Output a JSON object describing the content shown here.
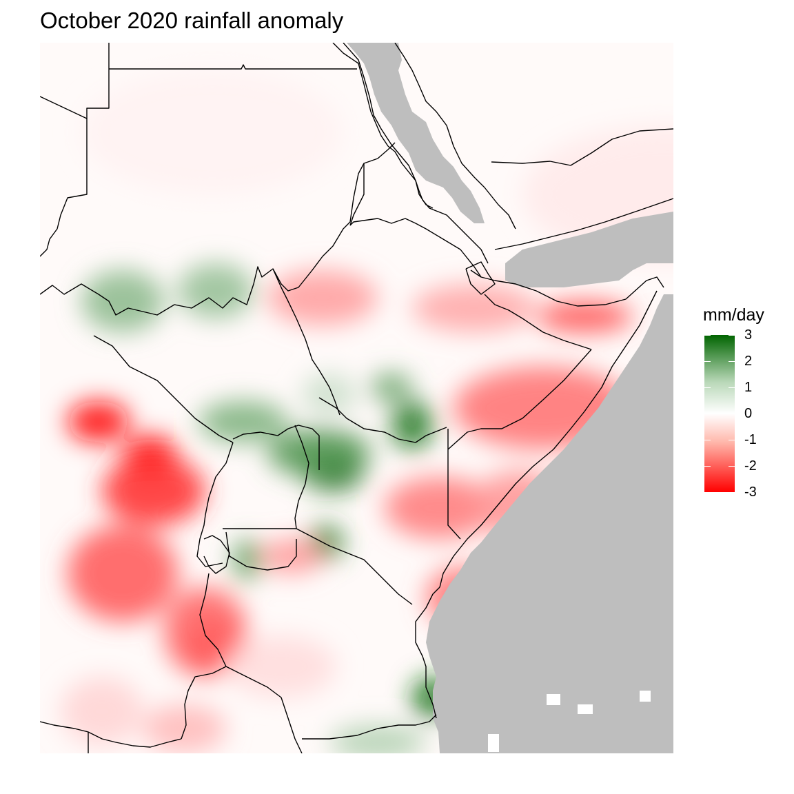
{
  "title": "October 2020 rainfall anomaly",
  "legend": {
    "title": "mm/day",
    "ticks": [
      "3",
      "2",
      "1",
      "0",
      "-1",
      "-2",
      "-3"
    ],
    "tick_values": [
      3,
      2,
      1,
      0,
      -1,
      -2,
      -3
    ],
    "range": [
      -3,
      3
    ],
    "colors": {
      "low": "#ff0000",
      "mid": "#ffffff",
      "high": "#006400"
    }
  },
  "colors": {
    "no_data": "#bebebe",
    "border": "#000000"
  },
  "map": {
    "type": "heatmap",
    "region": "East Africa",
    "value_units": "mm/day"
  }
}
